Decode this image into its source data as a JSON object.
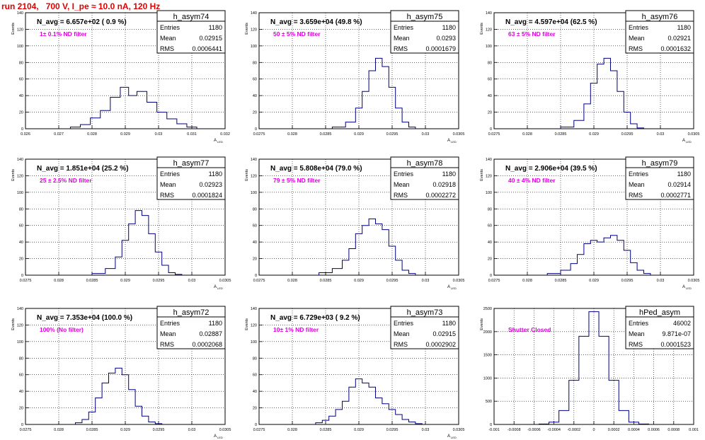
{
  "run_title": "run 2104,   700 V, I_pe ≈ 10.0 nA, 120 Hz",
  "colors": {
    "title": "#e00000",
    "annotation": "#e000e0",
    "histogram": "#000080",
    "grid": "#000000"
  },
  "stat_labels": {
    "entries": "Entries",
    "mean": "Mean",
    "rms": "RMS"
  },
  "chart_data": [
    {
      "type": "histogram",
      "name": "h_asym74",
      "header": "N_avg = 6.657e+02 ( 0.9 %)",
      "note": "1± 0.1% ND filter",
      "entries": "1180",
      "mean": "0.02915",
      "rms": "0.0006441",
      "xlabel": "A",
      "xlabel_sub": "LED",
      "ylabel": "Events",
      "xlim": [
        0.026,
        0.032
      ],
      "ylim": [
        0,
        140
      ],
      "xticks": [
        "0.026",
        "0.027",
        "0.028",
        "0.029",
        "0.03",
        "0.031",
        "0.032"
      ],
      "yticks": [
        "0",
        "20",
        "40",
        "60",
        "80",
        "100",
        "120",
        "140"
      ],
      "x": [
        0.0275,
        0.0278,
        0.0281,
        0.0284,
        0.0287,
        0.029,
        0.0292,
        0.0295,
        0.0298,
        0.0301,
        0.0304,
        0.0307,
        0.031
      ],
      "y": [
        2,
        5,
        13,
        22,
        38,
        50,
        40,
        45,
        32,
        20,
        12,
        6,
        2
      ]
    },
    {
      "type": "histogram",
      "name": "h_asym75",
      "header": "N_avg = 3.659e+04 (49.8 %)",
      "note": "50 ± 5% ND filter",
      "entries": "1180",
      "mean": "0.0293",
      "rms": "0.0001679",
      "xlabel": "A",
      "xlabel_sub": "LED",
      "ylabel": "Events",
      "xlim": [
        0.0275,
        0.0305
      ],
      "ylim": [
        0,
        140
      ],
      "xticks": [
        "0.0275",
        "0.028",
        "0.0285",
        "0.029",
        "0.0295",
        "0.03",
        "0.0305"
      ],
      "yticks": [
        "0",
        "20",
        "40",
        "60",
        "80",
        "100",
        "120",
        "140"
      ],
      "x": [
        0.0287,
        0.0289,
        0.029,
        0.0291,
        0.0292,
        0.0293,
        0.0294,
        0.0295,
        0.0296,
        0.0297,
        0.0298
      ],
      "y": [
        2,
        8,
        25,
        45,
        70,
        85,
        75,
        50,
        25,
        8,
        2
      ]
    },
    {
      "type": "histogram",
      "name": "h_asym76",
      "header": "N_avg = 4.597e+04 (62.5 %)",
      "note": "63 ± 5% ND filter",
      "entries": "1180",
      "mean": "0.02921",
      "rms": "0.0001632",
      "xlabel": "A",
      "xlabel_sub": "LED",
      "ylabel": "Events",
      "xlim": [
        0.0275,
        0.0305
      ],
      "ylim": [
        0,
        140
      ],
      "xticks": [
        "0.0275",
        "0.028",
        "0.0285",
        "0.029",
        "0.0295",
        "0.03",
        "0.0305"
      ],
      "yticks": [
        "0",
        "20",
        "40",
        "60",
        "80",
        "100",
        "120",
        "140"
      ],
      "x": [
        0.0286,
        0.0288,
        0.0289,
        0.029,
        0.0291,
        0.0292,
        0.0293,
        0.0294,
        0.0295,
        0.0296,
        0.0297
      ],
      "y": [
        2,
        10,
        30,
        55,
        78,
        85,
        70,
        45,
        20,
        6,
        1
      ]
    },
    {
      "type": "histogram",
      "name": "h_asym77",
      "header": "N_avg = 1.851e+04 (25.2 %)",
      "note": "25 ± 2.5% ND filter",
      "entries": "1180",
      "mean": "0.02923",
      "rms": "0.0001824",
      "xlabel": "A",
      "xlabel_sub": "LED",
      "ylabel": "Events",
      "xlim": [
        0.0275,
        0.0305
      ],
      "ylim": [
        0,
        140
      ],
      "xticks": [
        "0.0275",
        "0.028",
        "0.0285",
        "0.029",
        "0.0295",
        "0.03",
        "0.0305"
      ],
      "yticks": [
        "0",
        "20",
        "40",
        "60",
        "80",
        "100",
        "120",
        "140"
      ],
      "x": [
        0.0286,
        0.0288,
        0.0289,
        0.029,
        0.0291,
        0.0292,
        0.0293,
        0.0294,
        0.0295,
        0.0296,
        0.0297,
        0.0298
      ],
      "y": [
        2,
        8,
        22,
        42,
        62,
        78,
        72,
        50,
        28,
        12,
        3,
        1
      ]
    },
    {
      "type": "histogram",
      "name": "h_asym78",
      "header": "N_avg = 5.808e+04 (79.0 %)",
      "note": "79 ± 5% ND filter",
      "entries": "1180",
      "mean": "0.02918",
      "rms": "0.0002272",
      "xlabel": "A",
      "xlabel_sub": "LED",
      "ylabel": "Events",
      "xlim": [
        0.0275,
        0.0305
      ],
      "ylim": [
        0,
        140
      ],
      "xticks": [
        "0.0275",
        "0.028",
        "0.0285",
        "0.029",
        "0.0295",
        "0.03",
        "0.0305"
      ],
      "yticks": [
        "0",
        "20",
        "40",
        "60",
        "80",
        "100",
        "120",
        "140"
      ],
      "x": [
        0.0285,
        0.0287,
        0.0288,
        0.0289,
        0.029,
        0.0291,
        0.0292,
        0.0293,
        0.0294,
        0.0295,
        0.0296,
        0.0297,
        0.0298
      ],
      "y": [
        3,
        8,
        18,
        32,
        50,
        60,
        68,
        62,
        55,
        35,
        18,
        6,
        2
      ]
    },
    {
      "type": "histogram",
      "name": "h_asym79",
      "header": "N_avg = 2.906e+04 (39.5 %)",
      "note": "40 ± 4% ND filter",
      "entries": "1180",
      "mean": "0.02914",
      "rms": "0.0002771",
      "xlabel": "A",
      "xlabel_sub": "LED",
      "ylabel": "Events",
      "xlim": [
        0.0275,
        0.0305
      ],
      "ylim": [
        0,
        140
      ],
      "xticks": [
        "0.0275",
        "0.028",
        "0.0285",
        "0.029",
        "0.0295",
        "0.03",
        "0.0305"
      ],
      "yticks": [
        "0",
        "20",
        "40",
        "60",
        "80",
        "100",
        "120",
        "140"
      ],
      "x": [
        0.0284,
        0.0286,
        0.0287,
        0.0288,
        0.0289,
        0.029,
        0.0291,
        0.0292,
        0.0293,
        0.0294,
        0.0295,
        0.0296,
        0.0297,
        0.0298
      ],
      "y": [
        2,
        6,
        14,
        25,
        38,
        42,
        40,
        45,
        48,
        42,
        30,
        15,
        6,
        2
      ]
    },
    {
      "type": "histogram",
      "name": "h_asym72",
      "header": "N_avg = 7.353e+04 (100.0 %)",
      "note": "100% (No filter)",
      "entries": "1180",
      "mean": "0.02887",
      "rms": "0.0002068",
      "xlabel": "A",
      "xlabel_sub": "LED",
      "ylabel": "Events",
      "xlim": [
        0.0275,
        0.0305
      ],
      "ylim": [
        0,
        140
      ],
      "xticks": [
        "0.0275",
        "0.028",
        "0.0285",
        "0.029",
        "0.0295",
        "0.03",
        "0.0305"
      ],
      "yticks": [
        "0",
        "20",
        "40",
        "60",
        "80",
        "100",
        "120",
        "140"
      ],
      "x": [
        0.0283,
        0.0284,
        0.0285,
        0.0286,
        0.0287,
        0.0288,
        0.0289,
        0.029,
        0.0291,
        0.0292,
        0.0293,
        0.0294,
        0.0295
      ],
      "y": [
        2,
        6,
        15,
        32,
        50,
        62,
        68,
        60,
        42,
        22,
        10,
        3,
        1
      ]
    },
    {
      "type": "histogram",
      "name": "h_asym73",
      "header": "N_avg = 6.729e+03 ( 9.2 %)",
      "note": "10± 1% ND filter",
      "entries": "1180",
      "mean": "0.02915",
      "rms": "0.0002902",
      "xlabel": "A",
      "xlabel_sub": "LED",
      "ylabel": "Events",
      "xlim": [
        0.0275,
        0.0305
      ],
      "ylim": [
        0,
        140
      ],
      "xticks": [
        "0.0275",
        "0.028",
        "0.0285",
        "0.029",
        "0.0295",
        "0.03",
        "0.0305"
      ],
      "yticks": [
        "0",
        "20",
        "40",
        "60",
        "80",
        "100",
        "120",
        "140"
      ],
      "x": [
        0.0284,
        0.0285,
        0.0286,
        0.0287,
        0.0288,
        0.0289,
        0.029,
        0.0291,
        0.0292,
        0.0293,
        0.0294,
        0.0295,
        0.0296,
        0.0297,
        0.0298,
        0.0299
      ],
      "y": [
        2,
        5,
        10,
        18,
        28,
        45,
        55,
        50,
        45,
        32,
        25,
        18,
        12,
        6,
        3,
        1
      ]
    },
    {
      "type": "histogram",
      "name": "hPed_asym",
      "header": "",
      "note": "Shutter Closed",
      "entries": "46002",
      "mean": "9.871e-07",
      "rms": "0.0001523",
      "xlabel": "",
      "xlabel_sub": "",
      "ylabel": "Events",
      "xlim": [
        -0.001,
        0.001
      ],
      "ylim": [
        0,
        2500
      ],
      "xticks": [
        "-0.001",
        "-0.0008",
        "-0.0006",
        "-0.0004",
        "-0.0002",
        "0",
        "0.0002",
        "0.0004",
        "0.0006",
        "0.0008",
        "0.001"
      ],
      "yticks": [
        "0",
        "500",
        "1000",
        "1500",
        "2000",
        "2500"
      ],
      "x": [
        -0.0005,
        -0.0004,
        -0.0003,
        -0.0002,
        -0.0001,
        0,
        0.0001,
        0.0002,
        0.0003,
        0.0004,
        0.0005
      ],
      "y": [
        10,
        50,
        300,
        950,
        1900,
        2430,
        1900,
        950,
        300,
        50,
        10
      ]
    }
  ]
}
